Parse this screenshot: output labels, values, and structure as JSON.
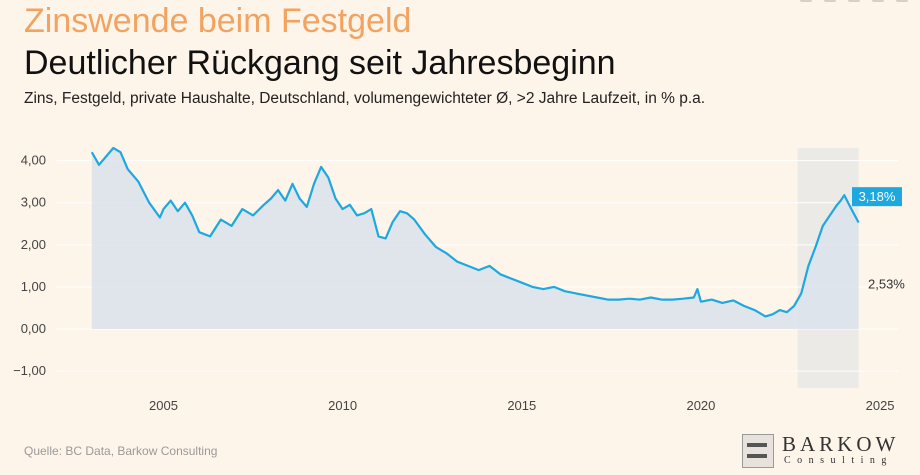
{
  "header": {
    "kicker": "Zinswende beim Festgeld",
    "title": "Deutlicher Rückgang seit Jahresbeginn",
    "subtitle": "Zins, Festgeld, private Haushalte, Deutschland, volumengewichteter Ø, >2 Jahre Laufzeit, in % p.a."
  },
  "footer": {
    "source": "Quelle: BC Data, Barkow Consulting",
    "logo_name": "BARKOW",
    "logo_sub": "Consulting"
  },
  "colors": {
    "line": "#1ea8e0",
    "area": "#dde3ec",
    "highlight_band": "#ebeae6",
    "callout_bg": "#1ea8e0",
    "kicker": "#f2a35f"
  },
  "chart_data": {
    "type": "area",
    "xlim": [
      2002,
      2025.5
    ],
    "ylim": [
      -1.4,
      4.3
    ],
    "y_ticks": [
      4,
      3,
      2,
      1,
      0,
      -1
    ],
    "y_tick_labels": [
      "4,00",
      "3,00",
      "2,00",
      "1,00",
      "0,00",
      "−1,00"
    ],
    "x_ticks": [
      2005,
      2010,
      2015,
      2020,
      2025
    ],
    "x_tick_labels": [
      "2005",
      "2010",
      "2015",
      "2020",
      "2025"
    ],
    "grid": true,
    "highlight_range": [
      2022.7,
      2024.4
    ],
    "callouts": [
      {
        "label": "3,18%",
        "value": 3.18,
        "style": "filled"
      },
      {
        "label": "2,53%",
        "value": 2.53,
        "style": "plain"
      }
    ],
    "x": [
      2003.0,
      2003.2,
      2003.4,
      2003.6,
      2003.8,
      2004.0,
      2004.3,
      2004.6,
      2004.9,
      2005.0,
      2005.2,
      2005.4,
      2005.6,
      2005.8,
      2006.0,
      2006.3,
      2006.6,
      2006.9,
      2007.2,
      2007.5,
      2007.8,
      2008.0,
      2008.2,
      2008.4,
      2008.6,
      2008.8,
      2009.0,
      2009.2,
      2009.4,
      2009.6,
      2009.8,
      2010.0,
      2010.2,
      2010.4,
      2010.6,
      2010.8,
      2011.0,
      2011.2,
      2011.4,
      2011.6,
      2011.8,
      2012.0,
      2012.3,
      2012.6,
      2012.9,
      2013.2,
      2013.5,
      2013.8,
      2014.1,
      2014.4,
      2014.7,
      2015.0,
      2015.3,
      2015.6,
      2015.9,
      2016.2,
      2016.5,
      2016.8,
      2017.1,
      2017.4,
      2017.7,
      2018.0,
      2018.3,
      2018.6,
      2018.9,
      2019.2,
      2019.5,
      2019.8,
      2019.9,
      2020.0,
      2020.3,
      2020.6,
      2020.9,
      2021.2,
      2021.5,
      2021.8,
      2022.0,
      2022.2,
      2022.4,
      2022.6,
      2022.8,
      2023.0,
      2023.2,
      2023.4,
      2023.6,
      2023.8,
      2023.9,
      2024.0,
      2024.2,
      2024.4
    ],
    "y": [
      4.2,
      3.9,
      4.1,
      4.3,
      4.2,
      3.8,
      3.5,
      3.0,
      2.65,
      2.85,
      3.05,
      2.8,
      3.0,
      2.7,
      2.3,
      2.2,
      2.6,
      2.45,
      2.85,
      2.7,
      2.95,
      3.1,
      3.3,
      3.05,
      3.45,
      3.1,
      2.9,
      3.45,
      3.85,
      3.6,
      3.1,
      2.85,
      2.95,
      2.7,
      2.75,
      2.85,
      2.2,
      2.15,
      2.55,
      2.8,
      2.75,
      2.6,
      2.25,
      1.95,
      1.8,
      1.6,
      1.5,
      1.4,
      1.5,
      1.3,
      1.2,
      1.1,
      1.0,
      0.95,
      1.0,
      0.9,
      0.85,
      0.8,
      0.75,
      0.7,
      0.7,
      0.72,
      0.7,
      0.75,
      0.7,
      0.7,
      0.72,
      0.75,
      0.95,
      0.65,
      0.7,
      0.62,
      0.68,
      0.55,
      0.45,
      0.3,
      0.35,
      0.45,
      0.4,
      0.55,
      0.85,
      1.5,
      1.95,
      2.45,
      2.7,
      2.95,
      3.05,
      3.18,
      2.85,
      2.53
    ]
  }
}
